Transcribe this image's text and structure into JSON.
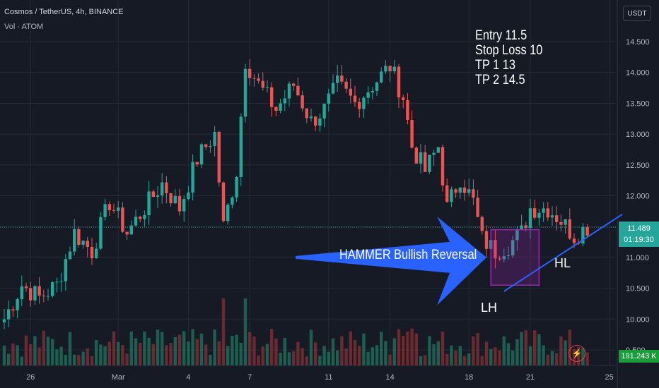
{
  "header": {
    "symbol_line": "Cosmos / TetherUS, 4h, BINANCE",
    "indicator_line": "Vol · ATOM"
  },
  "currency_button": "USDT",
  "notes": [
    "Entry 11.5",
    "Stop Loss 10",
    "TP 1 13",
    "TP 2 14.5"
  ],
  "annotations": {
    "arrow_label": "HAMMER Bullish Reversal",
    "lh_label": "LH",
    "hl_label": "HL"
  },
  "price_tag": {
    "price": "11.489",
    "countdown": "01:19:30"
  },
  "volume_tag": "191.243 K",
  "colors": {
    "up": "#26a69a",
    "down": "#ef5350",
    "grid": "#262a35",
    "arrow": "#2962ff",
    "box": "#9c27b0",
    "trend": "#2962ff"
  },
  "chart_data": {
    "type": "candlestick",
    "ylim": [
      9.5,
      14.8
    ],
    "y_ticks": [
      "9.500",
      "10.000",
      "10.500",
      "11.000",
      "11.500",
      "12.000",
      "12.500",
      "13.000",
      "13.500",
      "14.000",
      "14.500"
    ],
    "y_tick_values": [
      9.5,
      10.0,
      10.5,
      11.0,
      11.5,
      12.0,
      12.5,
      13.0,
      13.5,
      14.0,
      14.5
    ],
    "x_labels": [
      "26",
      "Mar",
      "4",
      "7",
      "11",
      "14",
      "18",
      "21",
      "25"
    ],
    "x_label_index": [
      6,
      26,
      42,
      56,
      74,
      88,
      106,
      120,
      138
    ],
    "total_slots": 140,
    "current_price": 11.489,
    "key_points": [
      {
        "i": 0,
        "p": 10.0
      },
      {
        "i": 4,
        "p": 10.55
      },
      {
        "i": 8,
        "p": 10.35
      },
      {
        "i": 12,
        "p": 10.55
      },
      {
        "i": 16,
        "p": 11.4
      },
      {
        "i": 20,
        "p": 11.1
      },
      {
        "i": 24,
        "p": 11.9
      },
      {
        "i": 28,
        "p": 11.4
      },
      {
        "i": 32,
        "p": 11.8
      },
      {
        "i": 36,
        "p": 12.2
      },
      {
        "i": 40,
        "p": 11.8
      },
      {
        "i": 44,
        "p": 12.6
      },
      {
        "i": 48,
        "p": 13.0
      },
      {
        "i": 50,
        "p": 11.5
      },
      {
        "i": 53,
        "p": 12.4
      },
      {
        "i": 55,
        "p": 14.2
      },
      {
        "i": 58,
        "p": 13.8
      },
      {
        "i": 62,
        "p": 13.4
      },
      {
        "i": 66,
        "p": 13.8
      },
      {
        "i": 70,
        "p": 13.2
      },
      {
        "i": 73,
        "p": 13.4
      },
      {
        "i": 76,
        "p": 13.8
      },
      {
        "i": 80,
        "p": 13.5
      },
      {
        "i": 84,
        "p": 13.8
      },
      {
        "i": 88,
        "p": 14.1
      },
      {
        "i": 91,
        "p": 13.6
      },
      {
        "i": 93,
        "p": 12.8
      },
      {
        "i": 96,
        "p": 12.4
      },
      {
        "i": 99,
        "p": 12.8
      },
      {
        "i": 101,
        "p": 11.8
      },
      {
        "i": 104,
        "p": 12.3
      },
      {
        "i": 107,
        "p": 11.9
      },
      {
        "i": 109,
        "p": 11.3
      },
      {
        "i": 112,
        "p": 11.1
      },
      {
        "i": 115,
        "p": 11.2
      },
      {
        "i": 118,
        "p": 11.4
      },
      {
        "i": 120,
        "p": 11.8
      },
      {
        "i": 124,
        "p": 11.8
      },
      {
        "i": 127,
        "p": 11.6
      },
      {
        "i": 130,
        "p": 11.35
      },
      {
        "i": 133,
        "p": 11.5
      }
    ],
    "hammer_box": {
      "start_index": 111,
      "end_index": 122,
      "low": 10.55,
      "high": 11.45
    },
    "trend_line": [
      {
        "i": 114,
        "p": 10.45
      },
      {
        "i": 141,
        "p": 11.7
      }
    ],
    "arrow_tip": {
      "i": 110,
      "p": 11.0
    }
  }
}
